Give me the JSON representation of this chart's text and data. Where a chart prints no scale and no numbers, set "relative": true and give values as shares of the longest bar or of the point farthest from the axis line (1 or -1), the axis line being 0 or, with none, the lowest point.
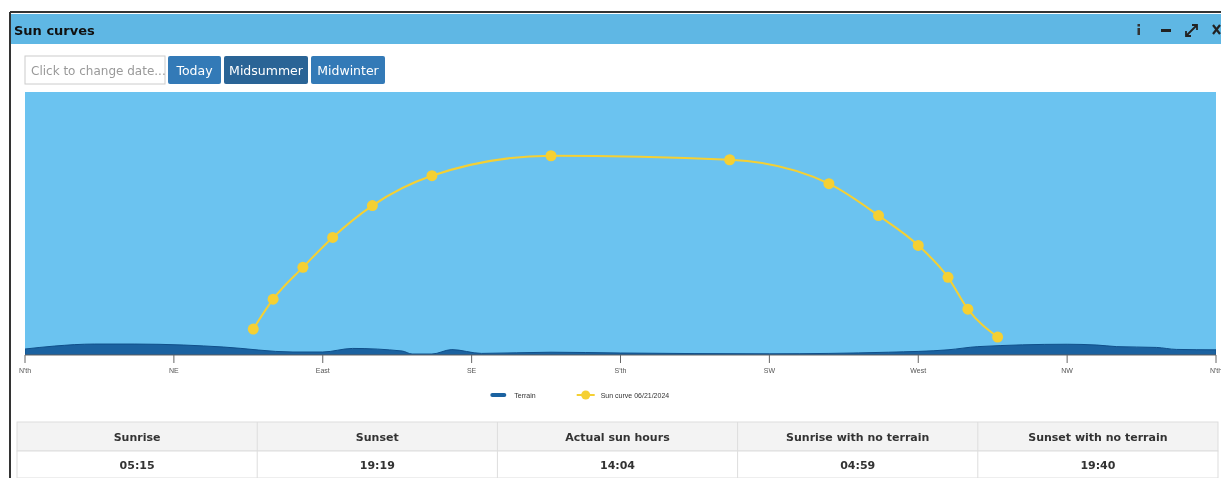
{
  "chart_data": [
    {
      "type": "line",
      "title": "Sun curves",
      "relative": true,
      "categories": [
        "N'th",
        null,
        null,
        null,
        null,
        null,
        null,
        null,
        null,
        null,
        null,
        null,
        null,
        null,
        null,
        "NE",
        null,
        null,
        null,
        null,
        null,
        null,
        null,
        null,
        null,
        null,
        null,
        null,
        null,
        null,
        "East",
        null,
        null,
        null,
        null,
        null,
        null,
        null,
        null,
        null,
        null,
        null,
        null,
        null,
        null,
        "SE",
        null,
        null,
        null,
        null,
        null,
        null,
        null,
        null,
        null,
        null,
        null,
        null,
        null,
        null,
        "S'th",
        null,
        null,
        null,
        null,
        null,
        null,
        null,
        null,
        null,
        null,
        null,
        null,
        null,
        null,
        "SW",
        null,
        null,
        null,
        null,
        null,
        null,
        null,
        null,
        null,
        null,
        null,
        null,
        null,
        null,
        "West",
        null,
        null,
        null,
        null,
        null,
        null,
        null,
        null,
        null,
        null,
        null,
        null,
        null,
        null,
        "NW",
        null,
        null,
        null,
        null,
        null,
        null,
        null,
        null,
        null,
        null,
        null,
        null,
        null,
        null,
        "N'th"
      ],
      "legend": "bottom",
      "annotations": [
        "Click to change date...",
        "Today",
        "Midsummer",
        "Midwinter"
      ],
      "series": [
        {
          "name": "Terrain",
          "type": "area",
          "color": "#1b62a0",
          "values": [
            0.03,
            null,
            null,
            0.045,
            null,
            null,
            null,
            0.055,
            null,
            null,
            null,
            0.055,
            null,
            null,
            null,
            null,
            0.05,
            null,
            null,
            null,
            0.04,
            null,
            null,
            null,
            null,
            null,
            null,
            0.015,
            null,
            null,
            0.015,
            null,
            null,
            0.033,
            null,
            null,
            null,
            null,
            0.02,
            0.005,
            null,
            0.005,
            null,
            0.027,
            null,
            null,
            0.008,
            null,
            null,
            null,
            null,
            null,
            null,
            0.014,
            null,
            null,
            null,
            null,
            null,
            null,
            0.01,
            null,
            null,
            null,
            null,
            null,
            null,
            null,
            null,
            null,
            null,
            null,
            null,
            null,
            null,
            0.006,
            null,
            null,
            null,
            null,
            null,
            null,
            null,
            null,
            null,
            null,
            null,
            0.014,
            null,
            null,
            null,
            null,
            null,
            0.026,
            null,
            null,
            0.042,
            null,
            null,
            null,
            null,
            null,
            null,
            null,
            null,
            0.054,
            null,
            null,
            0.05,
            null,
            0.042,
            null,
            null,
            null,
            0.038,
            null,
            0.028,
            null,
            null,
            null,
            0.026
          ]
        },
        {
          "name": "Sun curve 06/21/2024",
          "type": "line",
          "color": "#f5d033",
          "marker": "circle",
          "values": [
            null,
            null,
            null,
            null,
            null,
            null,
            null,
            null,
            null,
            null,
            null,
            null,
            null,
            null,
            null,
            null,
            null,
            null,
            null,
            null,
            null,
            null,
            null,
            0.13,
            null,
            0.28,
            null,
            null,
            0.44,
            null,
            null,
            0.59,
            null,
            null,
            null,
            0.75,
            null,
            null,
            null,
            null,
            null,
            0.9,
            null,
            null,
            null,
            null,
            null,
            null,
            null,
            null,
            null,
            null,
            null,
            1,
            null,
            null,
            null,
            null,
            null,
            null,
            null,
            null,
            null,
            null,
            null,
            null,
            null,
            null,
            null,
            null,
            null,
            0.98,
            null,
            null,
            null,
            null,
            null,
            null,
            null,
            null,
            null,
            0.86,
            null,
            null,
            null,
            null,
            0.7,
            null,
            null,
            null,
            0.55,
            null,
            null,
            0.39,
            null,
            0.23,
            null,
            null,
            0.09,
            null,
            null,
            null,
            null,
            null,
            null,
            null,
            null,
            null,
            null,
            null,
            null,
            null,
            null,
            null,
            null,
            null,
            null,
            null,
            null,
            null,
            null
          ]
        }
      ]
    },
    {
      "type": "other",
      "annotations": [
        "Sunrise",
        "Sunset",
        "Actual sun hours",
        "Sunrise with no terrain",
        "Sunset with no terrain",
        "05:15",
        "19:19",
        "14:04",
        "04:59",
        "19:40"
      ]
    }
  ]
}
